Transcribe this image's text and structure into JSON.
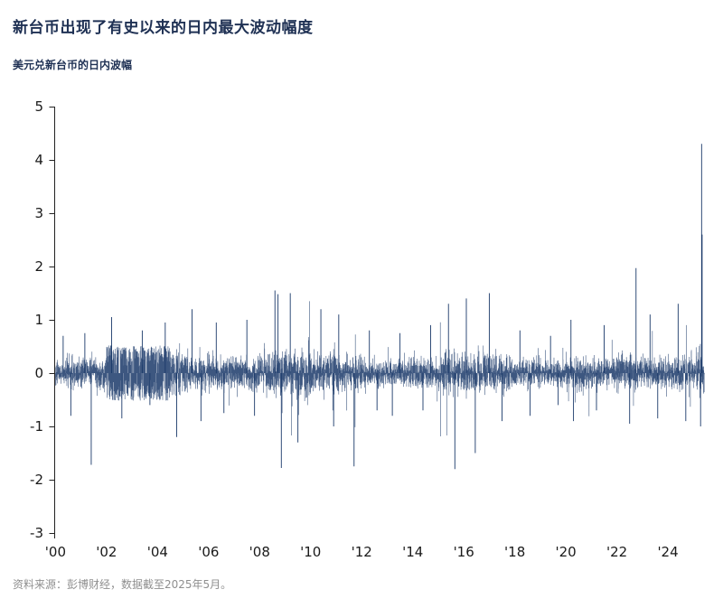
{
  "header": {
    "title": "新台币出现了有史以来的日内最大波动幅度",
    "subtitle": "美元兑新台币的日内波幅"
  },
  "footer": {
    "source": "资料来源：彭博财经，数据截至2025年5月。"
  },
  "chart_data": {
    "type": "bar",
    "series_name": "美元兑新台币的日内波幅",
    "title": "新台币出现了有史以来的日内最大波动幅度",
    "ylim": [
      -3,
      5
    ],
    "yticks": [
      5,
      4,
      3,
      2,
      1,
      0,
      -1,
      -2,
      -3
    ],
    "xlim": [
      1999.95,
      2025.45
    ],
    "xticks": [
      {
        "label": "'00",
        "x": 2000
      },
      {
        "label": "'02",
        "x": 2002
      },
      {
        "label": "'04",
        "x": 2004
      },
      {
        "label": "'06",
        "x": 2006
      },
      {
        "label": "'08",
        "x": 2008
      },
      {
        "label": "'10",
        "x": 2010
      },
      {
        "label": "'12",
        "x": 2012
      },
      {
        "label": "'14",
        "x": 2014
      },
      {
        "label": "'16",
        "x": 2016
      },
      {
        "label": "'18",
        "x": 2018
      },
      {
        "label": "'20",
        "x": 2020
      },
      {
        "label": "'22",
        "x": 2022
      },
      {
        "label": "'24",
        "x": 2024
      }
    ],
    "series_color": "#1b3a6a",
    "axis_color": "#222222",
    "grid": false,
    "legend": false,
    "yearly_envelope": [
      {
        "year": 2000,
        "max": 0.7,
        "min": -0.8,
        "typical": 0.16
      },
      {
        "year": 2001,
        "max": 0.75,
        "min": -1.72,
        "typical": 0.18
      },
      {
        "year": 2002,
        "max": 1.05,
        "min": -0.85,
        "typical": 0.26,
        "dense": true
      },
      {
        "year": 2003,
        "max": 0.8,
        "min": -0.6,
        "typical": 0.26,
        "dense": true
      },
      {
        "year": 2004,
        "max": 0.95,
        "min": -1.2,
        "typical": 0.26,
        "dense": true,
        "dense_end": 2004.5
      },
      {
        "year": 2005,
        "max": 1.2,
        "min": -0.9,
        "typical": 0.22
      },
      {
        "year": 2006,
        "max": 0.95,
        "min": -0.75,
        "typical": 0.2
      },
      {
        "year": 2007,
        "max": 1.0,
        "min": -0.8,
        "typical": 0.2
      },
      {
        "year": 2008,
        "max": 1.55,
        "min": -1.78,
        "typical": 0.26
      },
      {
        "year": 2009,
        "max": 1.5,
        "min": -1.3,
        "typical": 0.26
      },
      {
        "year": 2010,
        "max": 1.2,
        "min": -1.0,
        "typical": 0.22
      },
      {
        "year": 2011,
        "max": 1.1,
        "min": -1.75,
        "typical": 0.2
      },
      {
        "year": 2012,
        "max": 0.8,
        "min": -0.7,
        "typical": 0.16
      },
      {
        "year": 2013,
        "max": 0.75,
        "min": -0.8,
        "typical": 0.16
      },
      {
        "year": 2014,
        "max": 0.9,
        "min": -0.7,
        "typical": 0.17
      },
      {
        "year": 2015,
        "max": 1.3,
        "min": -1.8,
        "typical": 0.24
      },
      {
        "year": 2016,
        "max": 1.4,
        "min": -1.5,
        "typical": 0.24
      },
      {
        "year": 2017,
        "max": 1.5,
        "min": -0.9,
        "typical": 0.2
      },
      {
        "year": 2018,
        "max": 0.8,
        "min": -0.8,
        "typical": 0.16
      },
      {
        "year": 2019,
        "max": 0.7,
        "min": -0.6,
        "typical": 0.14
      },
      {
        "year": 2020,
        "max": 1.0,
        "min": -0.9,
        "typical": 0.18
      },
      {
        "year": 2021,
        "max": 0.9,
        "min": -0.7,
        "typical": 0.16
      },
      {
        "year": 2022,
        "max": 1.97,
        "min": -0.95,
        "typical": 0.2
      },
      {
        "year": 2023,
        "max": 1.1,
        "min": -0.85,
        "typical": 0.18
      },
      {
        "year": 2024,
        "max": 1.3,
        "min": -0.9,
        "typical": 0.2
      },
      {
        "year": 2025,
        "max": 4.3,
        "min": -1.0,
        "typical": 0.26
      }
    ],
    "extremes": [
      {
        "x": 2000.3,
        "v": 0.7
      },
      {
        "x": 2000.6,
        "v": -0.8
      },
      {
        "x": 2001.15,
        "v": 0.75
      },
      {
        "x": 2001.4,
        "v": -1.72
      },
      {
        "x": 2002.2,
        "v": 1.05
      },
      {
        "x": 2002.6,
        "v": -0.85
      },
      {
        "x": 2003.4,
        "v": 0.8
      },
      {
        "x": 2003.7,
        "v": -0.6
      },
      {
        "x": 2004.3,
        "v": 0.95
      },
      {
        "x": 2004.75,
        "v": -1.2
      },
      {
        "x": 2005.35,
        "v": 1.2
      },
      {
        "x": 2005.7,
        "v": -0.9
      },
      {
        "x": 2006.3,
        "v": 0.95
      },
      {
        "x": 2006.6,
        "v": -0.75
      },
      {
        "x": 2007.5,
        "v": 1.0
      },
      {
        "x": 2007.8,
        "v": -0.8
      },
      {
        "x": 2008.6,
        "v": 1.55
      },
      {
        "x": 2008.72,
        "v": 1.48
      },
      {
        "x": 2008.85,
        "v": -1.78
      },
      {
        "x": 2009.2,
        "v": 1.5
      },
      {
        "x": 2009.5,
        "v": -1.3
      },
      {
        "x": 2010.4,
        "v": 1.2
      },
      {
        "x": 2010.9,
        "v": -1.0
      },
      {
        "x": 2011.1,
        "v": 1.1
      },
      {
        "x": 2011.7,
        "v": -1.75
      },
      {
        "x": 2012.3,
        "v": 0.8
      },
      {
        "x": 2012.6,
        "v": -0.7
      },
      {
        "x": 2013.5,
        "v": 0.75
      },
      {
        "x": 2013.2,
        "v": -0.8
      },
      {
        "x": 2014.7,
        "v": 0.9
      },
      {
        "x": 2014.4,
        "v": -0.7
      },
      {
        "x": 2015.4,
        "v": 1.3
      },
      {
        "x": 2015.65,
        "v": -1.8
      },
      {
        "x": 2016.1,
        "v": 1.4
      },
      {
        "x": 2016.45,
        "v": -1.5
      },
      {
        "x": 2017.0,
        "v": 1.5
      },
      {
        "x": 2017.5,
        "v": -0.9
      },
      {
        "x": 2018.2,
        "v": 0.8
      },
      {
        "x": 2018.6,
        "v": -0.8
      },
      {
        "x": 2019.4,
        "v": 0.7
      },
      {
        "x": 2019.7,
        "v": -0.6
      },
      {
        "x": 2020.2,
        "v": 1.0
      },
      {
        "x": 2020.3,
        "v": -0.9
      },
      {
        "x": 2021.5,
        "v": 0.9
      },
      {
        "x": 2021.2,
        "v": -0.7
      },
      {
        "x": 2022.75,
        "v": 1.97
      },
      {
        "x": 2022.5,
        "v": -0.95
      },
      {
        "x": 2023.3,
        "v": 1.1
      },
      {
        "x": 2023.6,
        "v": -0.85
      },
      {
        "x": 2024.4,
        "v": 1.3
      },
      {
        "x": 2024.7,
        "v": -0.9
      },
      {
        "x": 2025.32,
        "v": 4.3
      },
      {
        "x": 2025.34,
        "v": 2.6
      },
      {
        "x": 2025.28,
        "v": -1.0
      }
    ]
  }
}
